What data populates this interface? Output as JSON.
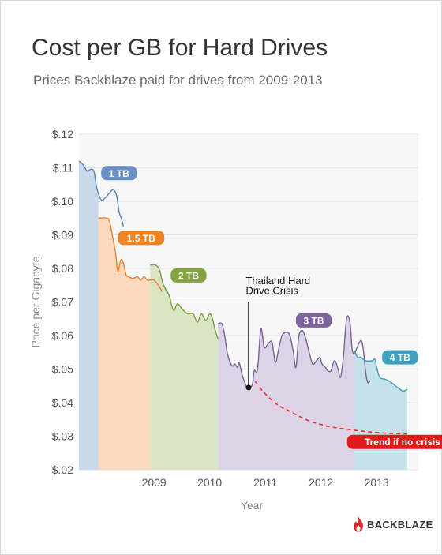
{
  "header": {
    "title": "Cost per GB for Hard Drives",
    "subtitle": "Prices Backblaze paid for drives from 2009-2013"
  },
  "brand": {
    "logo_text": "BACKBLAZE",
    "flame_color": "#d0322e"
  },
  "chart_data": {
    "type": "area",
    "xlabel": "Year",
    "ylabel": "Price per Gigabyte",
    "x_tick_labels": [
      "2009",
      "2010",
      "2011",
      "2012",
      "2013"
    ],
    "x_tick_positions": [
      2009.0,
      2010.0,
      2011.0,
      2012.0,
      2013.0
    ],
    "xlim": [
      2007.65,
      2013.75
    ],
    "y_tick_labels": [
      "$.02",
      "$.03",
      "$.04",
      "$.05",
      "$.06",
      "$.07",
      "$.08",
      "$.09",
      "$.10",
      "$.11",
      "$.12"
    ],
    "ylim": [
      0.02,
      0.12
    ],
    "grid": "horizontal",
    "series": [
      {
        "name": "1 TB",
        "color": "#5b82b8",
        "fill": "#c9d8ea",
        "area_start": 2007.65,
        "area_end": 2008.0,
        "line_end": 2008.45,
        "points": [
          [
            2007.65,
            0.112
          ],
          [
            2007.72,
            0.111
          ],
          [
            2007.8,
            0.109
          ],
          [
            2007.85,
            0.1095
          ],
          [
            2007.92,
            0.109
          ],
          [
            2007.97,
            0.104
          ],
          [
            2008.05,
            0.1005
          ],
          [
            2008.12,
            0.101
          ],
          [
            2008.2,
            0.1025
          ],
          [
            2008.27,
            0.1035
          ],
          [
            2008.33,
            0.1015
          ],
          [
            2008.37,
            0.097
          ],
          [
            2008.42,
            0.0945
          ],
          [
            2008.45,
            0.0925
          ]
        ]
      },
      {
        "name": "1.5 TB",
        "color": "#ee7d2a",
        "fill": "#fbd9bd",
        "area_start": 2008.0,
        "area_end": 2008.93,
        "line_end": 2009.15,
        "points": [
          [
            2008.0,
            0.095
          ],
          [
            2008.15,
            0.095
          ],
          [
            2008.2,
            0.094
          ],
          [
            2008.26,
            0.089
          ],
          [
            2008.31,
            0.0845
          ],
          [
            2008.35,
            0.079
          ],
          [
            2008.4,
            0.0825
          ],
          [
            2008.45,
            0.0815
          ],
          [
            2008.5,
            0.078
          ],
          [
            2008.55,
            0.0775
          ],
          [
            2008.62,
            0.077
          ],
          [
            2008.7,
            0.0775
          ],
          [
            2008.76,
            0.0765
          ],
          [
            2008.82,
            0.0775
          ],
          [
            2008.88,
            0.0765
          ],
          [
            2008.93,
            0.0765
          ],
          [
            2009.0,
            0.0765
          ],
          [
            2009.08,
            0.075
          ],
          [
            2009.15,
            0.073
          ]
        ]
      },
      {
        "name": "2 TB",
        "color": "#7d9c3f",
        "fill": "#d9e6c4",
        "area_start": 2008.93,
        "area_end": 2010.15,
        "line_end": 2010.15,
        "points": [
          [
            2008.93,
            0.081
          ],
          [
            2009.03,
            0.081
          ],
          [
            2009.1,
            0.0795
          ],
          [
            2009.15,
            0.076
          ],
          [
            2009.2,
            0.074
          ],
          [
            2009.27,
            0.072
          ],
          [
            2009.35,
            0.0675
          ],
          [
            2009.42,
            0.0695
          ],
          [
            2009.5,
            0.068
          ],
          [
            2009.6,
            0.0665
          ],
          [
            2009.7,
            0.0665
          ],
          [
            2009.78,
            0.064
          ],
          [
            2009.85,
            0.0665
          ],
          [
            2009.93,
            0.0645
          ],
          [
            2010.0,
            0.0665
          ],
          [
            2010.05,
            0.065
          ],
          [
            2010.1,
            0.0615
          ],
          [
            2010.15,
            0.059
          ]
        ]
      },
      {
        "name": "3 TB",
        "color": "#7b6399",
        "fill": "#ddd3e6",
        "area_start": 2010.15,
        "area_end": 2012.6,
        "line_end": 2012.88,
        "points": [
          [
            2010.15,
            0.0635
          ],
          [
            2010.22,
            0.0635
          ],
          [
            2010.27,
            0.06
          ],
          [
            2010.32,
            0.0545
          ],
          [
            2010.4,
            0.051
          ],
          [
            2010.45,
            0.0515
          ],
          [
            2010.5,
            0.0505
          ],
          [
            2010.53,
            0.052
          ],
          [
            2010.58,
            0.0485
          ],
          [
            2010.62,
            0.0465
          ],
          [
            2010.67,
            0.0445
          ],
          [
            2010.72,
            0.0445
          ],
          [
            2010.77,
            0.0455
          ],
          [
            2010.8,
            0.0495
          ],
          [
            2010.86,
            0.05
          ],
          [
            2010.92,
            0.062
          ],
          [
            2010.98,
            0.0565
          ],
          [
            2011.05,
            0.0575
          ],
          [
            2011.12,
            0.058
          ],
          [
            2011.18,
            0.052
          ],
          [
            2011.24,
            0.056
          ],
          [
            2011.3,
            0.06
          ],
          [
            2011.38,
            0.061
          ],
          [
            2011.44,
            0.06
          ],
          [
            2011.5,
            0.0555
          ],
          [
            2011.55,
            0.0505
          ],
          [
            2011.6,
            0.0595
          ],
          [
            2011.66,
            0.0615
          ],
          [
            2011.72,
            0.0595
          ],
          [
            2011.78,
            0.0555
          ],
          [
            2011.85,
            0.0515
          ],
          [
            2011.92,
            0.0525
          ],
          [
            2011.98,
            0.0535
          ],
          [
            2012.02,
            0.0515
          ],
          [
            2012.08,
            0.0505
          ],
          [
            2012.12,
            0.0495
          ],
          [
            2012.18,
            0.0495
          ],
          [
            2012.24,
            0.0525
          ],
          [
            2012.3,
            0.0505
          ],
          [
            2012.35,
            0.0475
          ],
          [
            2012.4,
            0.053
          ],
          [
            2012.46,
            0.065
          ],
          [
            2012.52,
            0.064
          ],
          [
            2012.56,
            0.056
          ],
          [
            2012.6,
            0.0545
          ],
          [
            2012.65,
            0.0565
          ],
          [
            2012.72,
            0.0585
          ],
          [
            2012.76,
            0.056
          ],
          [
            2012.8,
            0.0495
          ],
          [
            2012.84,
            0.046
          ],
          [
            2012.88,
            0.0465
          ]
        ]
      },
      {
        "name": "4 TB",
        "color": "#3e9bb5",
        "fill": "#c5e2ea",
        "area_start": 2012.6,
        "area_end": 2013.55,
        "line_end": 2013.55,
        "points": [
          [
            2012.6,
            0.0555
          ],
          [
            2012.66,
            0.0535
          ],
          [
            2012.72,
            0.0535
          ],
          [
            2012.8,
            0.0525
          ],
          [
            2012.92,
            0.0525
          ],
          [
            2012.97,
            0.053
          ],
          [
            2013.0,
            0.0505
          ],
          [
            2013.06,
            0.0475
          ],
          [
            2013.15,
            0.047
          ],
          [
            2013.22,
            0.0465
          ],
          [
            2013.3,
            0.0455
          ],
          [
            2013.38,
            0.0445
          ],
          [
            2013.46,
            0.0435
          ],
          [
            2013.5,
            0.0435
          ],
          [
            2013.55,
            0.044
          ]
        ]
      }
    ],
    "trend": {
      "name": "Trend if no crisis",
      "color": "#e8302a",
      "points": [
        [
          2010.82,
          0.0463
        ],
        [
          2010.95,
          0.0435
        ],
        [
          2011.1,
          0.041
        ],
        [
          2011.25,
          0.039
        ],
        [
          2011.4,
          0.0378
        ],
        [
          2011.6,
          0.036
        ],
        [
          2011.8,
          0.0345
        ],
        [
          2012.0,
          0.0335
        ],
        [
          2012.2,
          0.0327
        ],
        [
          2012.5,
          0.032
        ],
        [
          2012.8,
          0.0314
        ],
        [
          2013.1,
          0.031
        ],
        [
          2013.3,
          0.0308
        ],
        [
          2013.55,
          0.0307
        ]
      ]
    },
    "series_labels": [
      {
        "text": "1 TB",
        "color": "#6a8fc2",
        "x": 2008.05,
        "y": 0.1084
      },
      {
        "text": "1.5 TB",
        "color": "#ef8422",
        "x": 2008.35,
        "y": 0.0891
      },
      {
        "text": "2 TB",
        "color": "#82a33f",
        "x": 2009.3,
        "y": 0.0779
      },
      {
        "text": "3 TB",
        "color": "#7d649c",
        "x": 2011.55,
        "y": 0.0645
      },
      {
        "text": "4 TB",
        "color": "#3fa1bd",
        "x": 2013.1,
        "y": 0.0535
      },
      {
        "text": "Trend if no crisis",
        "color": "#e11b1b",
        "x": 2012.47,
        "y": 0.0283
      }
    ],
    "annotation": {
      "text": [
        "Thailand Hard",
        "Drive Crisis"
      ],
      "point": [
        2010.7,
        0.0445
      ],
      "line_top_y": 0.07,
      "text_anchor_x": 2010.65,
      "text_y": [
        0.0753,
        0.0723
      ]
    }
  }
}
